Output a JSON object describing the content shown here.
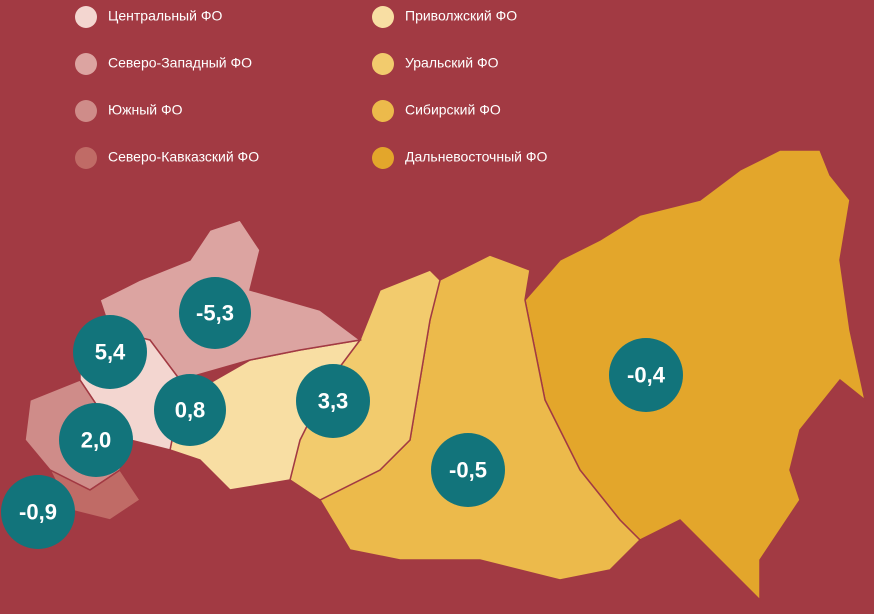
{
  "legend": {
    "items": [
      {
        "label": "Центральный ФО",
        "color": "#f3d6d0"
      },
      {
        "label": "Северо-Западный ФО",
        "color": "#dca4a1"
      },
      {
        "label": "Южный ФО",
        "color": "#cf8c89"
      },
      {
        "label": "Северо-Кавказский ФО",
        "color": "#c06b66"
      },
      {
        "label": "Приволжский ФО",
        "color": "#f8dea3"
      },
      {
        "label": "Уральский ФО",
        "color": "#f2cb6d"
      },
      {
        "label": "Сибирский ФО",
        "color": "#ecba4b"
      },
      {
        "label": "Дальневосточный ФО",
        "color": "#e3a62b"
      }
    ]
  },
  "bubbles": [
    {
      "label": "5,4"
    },
    {
      "label": "-5,3"
    },
    {
      "label": "0,8"
    },
    {
      "label": "2,0"
    },
    {
      "label": "-0,9"
    },
    {
      "label": "3,3"
    },
    {
      "label": "-0,5"
    },
    {
      "label": "-0,4"
    }
  ]
}
